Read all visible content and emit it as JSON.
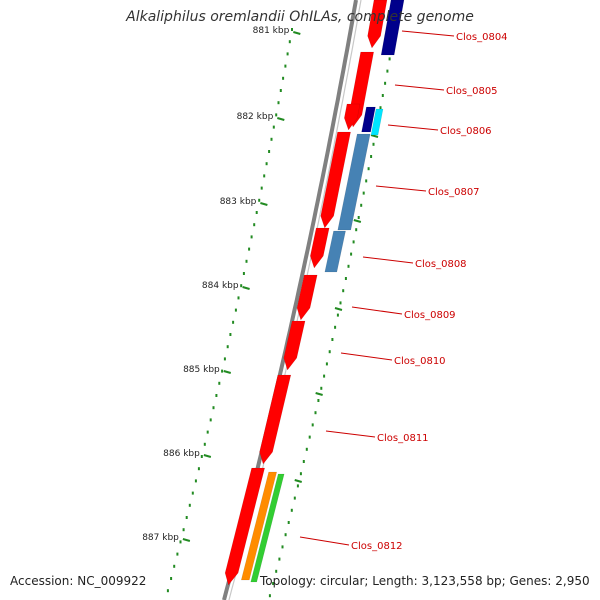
{
  "title": "Alkaliphilus oremlandii OhILAs, complete genome",
  "footer": {
    "accession": "Accession: NC_009922",
    "topology": "Topology: circular; Length: 3,123,558 bp; Genes: 2,950"
  },
  "colors": {
    "forward_cds": "#ff0000",
    "reverse_navy": "#00008b",
    "reverse_cyan": "#00e5ff",
    "reverse_steelblue": "#4682b4",
    "orange": "#ff8c00",
    "green": "#32cd32",
    "backbone": "#808080",
    "tick": "#228b22",
    "label": "#cc0000"
  },
  "ticks": [
    {
      "label": "881 kbp"
    },
    {
      "label": "882 kbp"
    },
    {
      "label": "883 kbp"
    },
    {
      "label": "884 kbp"
    },
    {
      "label": "885 kbp"
    },
    {
      "label": "886 kbp"
    },
    {
      "label": "887 kbp"
    }
  ],
  "genes": [
    {
      "label": "Clos_0804"
    },
    {
      "label": "Clos_0805"
    },
    {
      "label": "Clos_0806"
    },
    {
      "label": "Clos_0807"
    },
    {
      "label": "Clos_0808"
    },
    {
      "label": "Clos_0809"
    },
    {
      "label": "Clos_0810"
    },
    {
      "label": "Clos_0811"
    },
    {
      "label": "Clos_0812"
    }
  ]
}
